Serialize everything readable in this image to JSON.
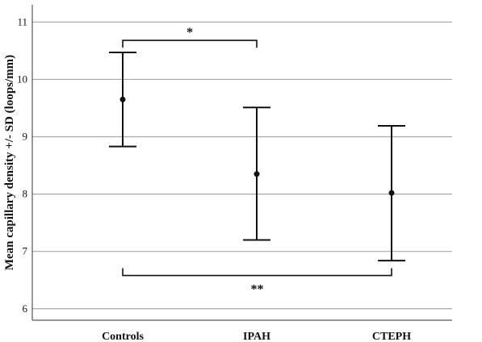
{
  "chart_data": {
    "type": "error-bar",
    "title": "",
    "xlabel": "",
    "ylabel": "Mean capillary density +/- SD (loops/mm)",
    "ylim": [
      5.8,
      11.3
    ],
    "yticks": [
      6,
      7,
      8,
      9,
      10,
      11
    ],
    "categories": [
      "Controls",
      "IPAH",
      "CTEPH"
    ],
    "means": [
      9.65,
      8.35,
      8.02
    ],
    "sd_upper": [
      10.47,
      9.51,
      9.19
    ],
    "sd_lower": [
      8.83,
      7.2,
      6.84
    ],
    "grid": "horizontal",
    "significance": [
      {
        "from": 0,
        "to": 1,
        "y": 10.68,
        "label": "*"
      },
      {
        "from": 0,
        "to": 2,
        "y": 6.58,
        "label": "**"
      }
    ]
  }
}
